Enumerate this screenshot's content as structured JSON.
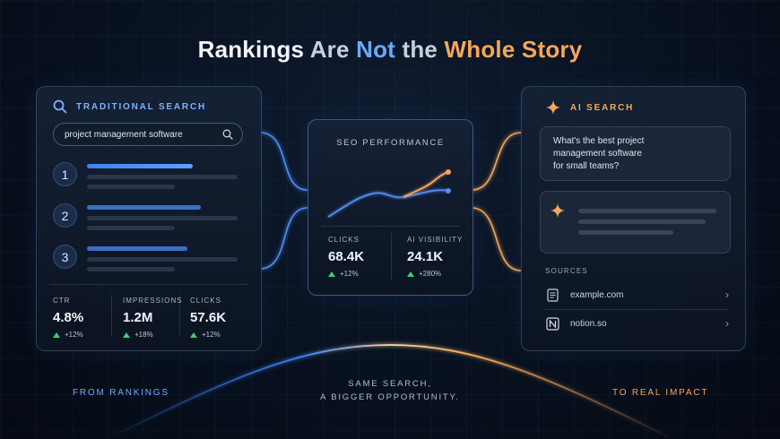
{
  "title": {
    "w1": "Rankings",
    "w2": "Are",
    "w3": "Not",
    "w4": "the",
    "w5": "Whole Story"
  },
  "traditional": {
    "header": "TRADITIONAL SEARCH",
    "query": "project management software",
    "ranks": [
      "1",
      "2",
      "3"
    ],
    "stats": [
      {
        "label": "CTR",
        "value": "4.8%",
        "change": "+12%"
      },
      {
        "label": "IMPRESSIONS",
        "value": "1.2M",
        "change": "+18%"
      },
      {
        "label": "CLICKS",
        "value": "57.6K",
        "change": "+12%"
      }
    ]
  },
  "center": {
    "title": "SEO PERFORMANCE",
    "stats": [
      {
        "label": "CLICKS",
        "value": "68.4K",
        "change": "+12%"
      },
      {
        "label": "AI VISIBILITY",
        "value": "24.1K",
        "change": "+280%"
      }
    ],
    "colors": {
      "blue": "#4f8ef7",
      "orange": "#f4a75a"
    }
  },
  "ai": {
    "header": "AI SEARCH",
    "question_lines": [
      "What's the best project",
      "management software",
      "for small teams?"
    ],
    "sources_label": "SOURCES",
    "sources": [
      {
        "name": "example.com",
        "icon": "document-icon"
      },
      {
        "name": "notion.so",
        "icon": "notion-logo-icon"
      }
    ]
  },
  "footer": {
    "left": "FROM RANKINGS",
    "tagline_1": "SAME SEARCH,",
    "tagline_2": "A BIGGER OPPORTUNITY.",
    "right": "TO REAL IMPACT"
  },
  "colors": {
    "accent_blue": "#6aa9ff",
    "accent_orange": "#f4a75a",
    "positive": "#3ecf70"
  }
}
